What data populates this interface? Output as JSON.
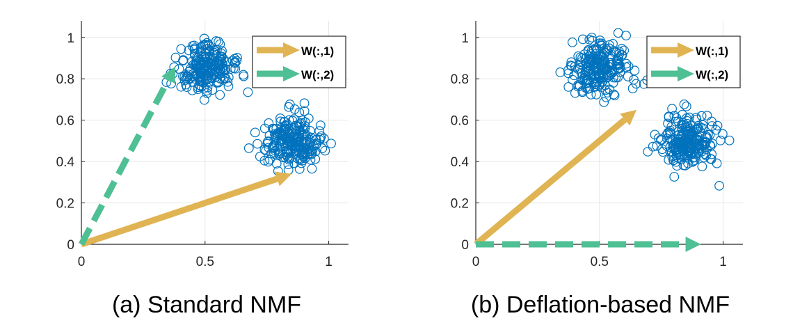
{
  "chart_data": [
    {
      "type": "scatter",
      "caption": "(a) Standard NMF",
      "xlim": [
        0,
        1.08
      ],
      "ylim": [
        0,
        1.08
      ],
      "xticks": [
        0,
        0.5,
        1
      ],
      "xtick_labels": [
        "0",
        "0.5",
        "1"
      ],
      "yticks": [
        0,
        0.2,
        0.4,
        0.6,
        0.8,
        1
      ],
      "ytick_labels": [
        "0",
        "0.2",
        "0.4",
        "0.6",
        "0.8",
        "1"
      ],
      "grid": true,
      "legend_position": "top-right",
      "clusters": [
        {
          "center": [
            0.5,
            0.85
          ],
          "spread": 0.06,
          "points": 220
        },
        {
          "center": [
            0.85,
            0.5
          ],
          "spread": 0.06,
          "points": 220
        }
      ],
      "vectors": [
        {
          "name": "W(:,1)",
          "from": [
            0,
            0
          ],
          "to": [
            0.85,
            0.34
          ],
          "color": "#e0b452",
          "style": "solid"
        },
        {
          "name": "W(:,2)",
          "from": [
            0,
            0
          ],
          "to": [
            0.38,
            0.86
          ],
          "color": "#4fbf94",
          "style": "dashed"
        }
      ]
    },
    {
      "type": "scatter",
      "caption": "(b) Deflation-based NMF",
      "xlim": [
        0,
        1.08
      ],
      "ylim": [
        0,
        1.08
      ],
      "xticks": [
        0,
        0.5,
        1
      ],
      "xtick_labels": [
        "0",
        "0.5",
        "1"
      ],
      "yticks": [
        0,
        0.2,
        0.4,
        0.6,
        0.8,
        1
      ],
      "ytick_labels": [
        "0",
        "0.2",
        "0.4",
        "0.6",
        "0.8",
        "1"
      ],
      "grid": true,
      "legend_position": "top-right",
      "clusters": [
        {
          "center": [
            0.5,
            0.85
          ],
          "spread": 0.06,
          "points": 220
        },
        {
          "center": [
            0.85,
            0.5
          ],
          "spread": 0.06,
          "points": 220
        }
      ],
      "vectors": [
        {
          "name": "W(:,1)",
          "from": [
            0,
            0
          ],
          "to": [
            0.65,
            0.65
          ],
          "color": "#e0b452",
          "style": "solid"
        },
        {
          "name": "W(:,2)",
          "from": [
            0,
            0
          ],
          "to": [
            0.91,
            0.0
          ],
          "color": "#4fbf94",
          "style": "dashed"
        }
      ]
    }
  ],
  "colors": {
    "scatter_marker": "#0072bd",
    "grid": "#e6e6e6",
    "axis": "#262626"
  }
}
